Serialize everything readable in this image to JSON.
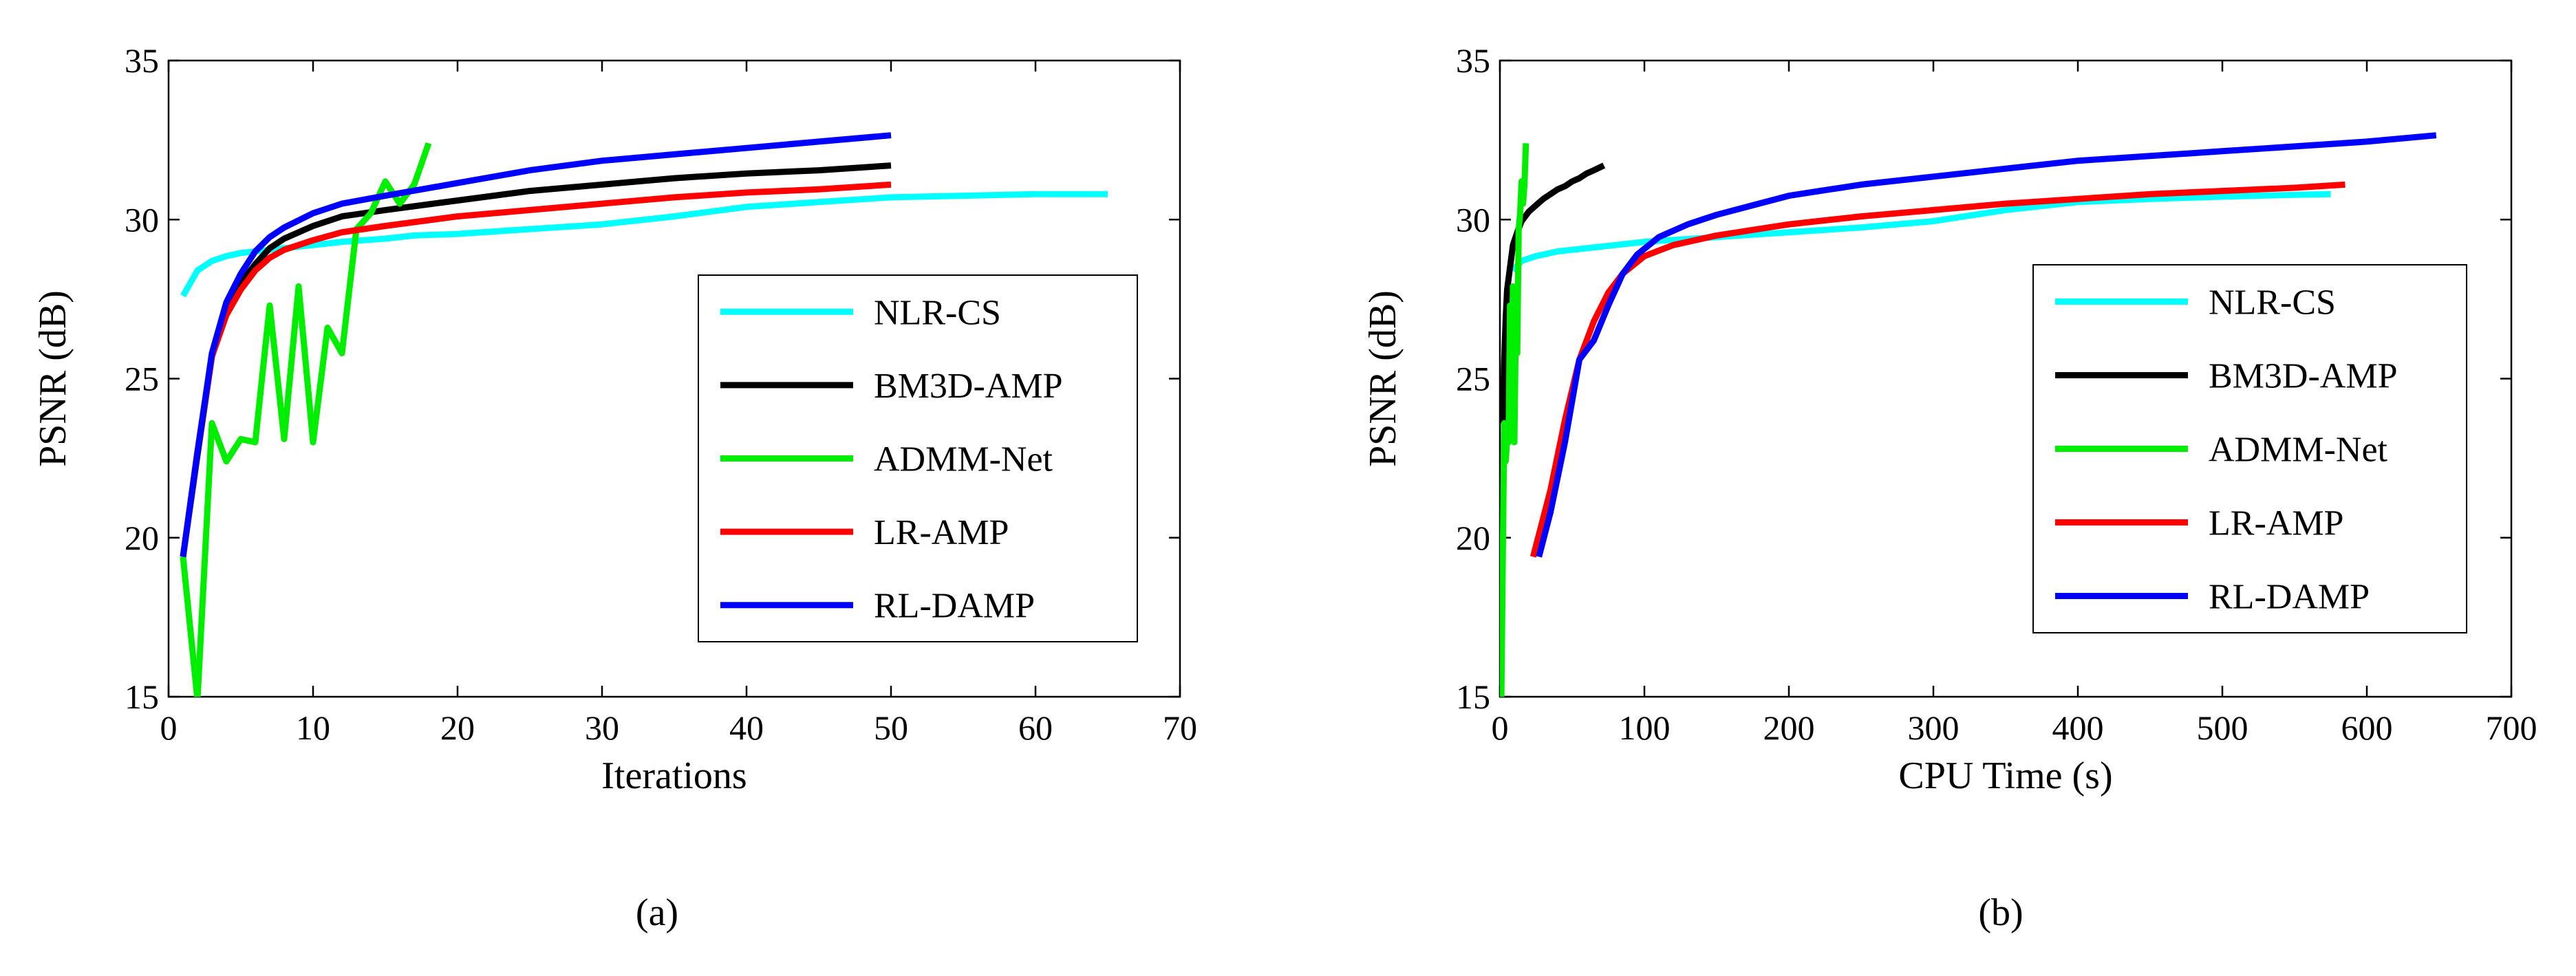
{
  "chart_data": [
    {
      "type": "line",
      "caption": "(a)",
      "xlabel": "Iterations",
      "ylabel": "PSNR (dB)",
      "xlim": [
        0,
        70
      ],
      "ylim": [
        15,
        35
      ],
      "xticks": [
        0,
        10,
        20,
        30,
        40,
        50,
        60,
        70
      ],
      "yticks": [
        15,
        20,
        25,
        30,
        35
      ],
      "grid": false,
      "legend_position": "right",
      "series": [
        {
          "name": "NLR-CS",
          "color": "#00ffff",
          "x": [
            1,
            2,
            3,
            4,
            5,
            6,
            8,
            10,
            12,
            15,
            17,
            20,
            25,
            30,
            35,
            40,
            45,
            50,
            55,
            60,
            65
          ],
          "y": [
            27.6,
            28.4,
            28.7,
            28.85,
            28.95,
            29.0,
            29.1,
            29.2,
            29.3,
            29.4,
            29.5,
            29.55,
            29.7,
            29.85,
            30.1,
            30.4,
            30.55,
            30.7,
            30.75,
            30.8,
            30.8
          ]
        },
        {
          "name": "BM3D-AMP",
          "color": "#000000",
          "x": [
            1,
            2,
            3,
            4,
            5,
            6,
            7,
            8,
            10,
            12,
            15,
            20,
            25,
            30,
            35,
            40,
            45,
            50
          ],
          "y": [
            19.4,
            22.6,
            25.7,
            27.2,
            28.0,
            28.6,
            29.1,
            29.4,
            29.8,
            30.1,
            30.3,
            30.6,
            30.9,
            31.1,
            31.3,
            31.45,
            31.55,
            31.7
          ]
        },
        {
          "name": "ADMM-Net",
          "color": "#00ee00",
          "x": [
            1,
            2,
            3,
            4,
            5,
            6,
            7,
            8,
            9,
            10,
            11,
            12,
            13,
            14,
            15,
            16,
            17,
            18
          ],
          "y": [
            19.4,
            14.9,
            23.6,
            22.4,
            23.1,
            23.0,
            27.3,
            23.1,
            27.9,
            23.0,
            26.6,
            25.8,
            29.7,
            30.2,
            31.2,
            30.5,
            31.1,
            32.4
          ]
        },
        {
          "name": "LR-AMP",
          "color": "#ff0000",
          "x": [
            1,
            2,
            3,
            4,
            5,
            6,
            7,
            8,
            10,
            12,
            15,
            20,
            25,
            30,
            35,
            40,
            45,
            50
          ],
          "y": [
            19.4,
            22.7,
            25.7,
            27.0,
            27.8,
            28.4,
            28.8,
            29.05,
            29.35,
            29.6,
            29.8,
            30.1,
            30.3,
            30.5,
            30.7,
            30.85,
            30.95,
            31.1
          ]
        },
        {
          "name": "RL-DAMP",
          "color": "#0000ff",
          "x": [
            1,
            2,
            3,
            4,
            5,
            6,
            7,
            8,
            10,
            12,
            15,
            20,
            25,
            30,
            35,
            40,
            45,
            50
          ],
          "y": [
            19.4,
            22.7,
            25.8,
            27.4,
            28.3,
            29.0,
            29.45,
            29.75,
            30.2,
            30.5,
            30.75,
            31.15,
            31.55,
            31.85,
            32.05,
            32.25,
            32.45,
            32.65
          ]
        }
      ]
    },
    {
      "type": "line",
      "caption": "(b)",
      "xlabel": "CPU Time (s)",
      "ylabel": "PSNR (dB)",
      "xlim": [
        0,
        700
      ],
      "ylim": [
        15,
        35
      ],
      "xticks": [
        0,
        100,
        200,
        300,
        400,
        500,
        600,
        700
      ],
      "yticks": [
        15,
        20,
        25,
        30,
        35
      ],
      "grid": false,
      "legend_position": "right",
      "series": [
        {
          "name": "NLR-CS",
          "color": "#00ffff",
          "x": [
            9,
            15,
            25,
            40,
            60,
            80,
            100,
            150,
            200,
            250,
            300,
            350,
            400,
            450,
            500,
            550,
            575
          ],
          "y": [
            28.4,
            28.7,
            28.85,
            29.0,
            29.1,
            29.2,
            29.3,
            29.45,
            29.6,
            29.75,
            29.95,
            30.3,
            30.55,
            30.65,
            30.72,
            30.78,
            30.8
          ]
        },
        {
          "name": "BM3D-AMP",
          "color": "#000000",
          "x": [
            2,
            3,
            4,
            5,
            7,
            9,
            12,
            15,
            20,
            25,
            30,
            35,
            40,
            45,
            50,
            55,
            60,
            65,
            72
          ],
          "y": [
            23.6,
            25.6,
            26.9,
            27.8,
            28.5,
            29.2,
            29.6,
            29.95,
            30.25,
            30.45,
            30.65,
            30.8,
            30.95,
            31.05,
            31.2,
            31.3,
            31.45,
            31.55,
            31.7
          ]
        },
        {
          "name": "ADMM-Net",
          "color": "#00ee00",
          "x": [
            1,
            2,
            3,
            4,
            5,
            6,
            7,
            8,
            9,
            10,
            11,
            12,
            13,
            14,
            15,
            16,
            17,
            18
          ],
          "y": [
            15.0,
            19.4,
            23.6,
            22.4,
            23.1,
            23.0,
            27.3,
            23.1,
            27.9,
            23.0,
            26.6,
            25.8,
            29.7,
            30.2,
            31.2,
            30.5,
            31.1,
            32.4
          ]
        },
        {
          "name": "LR-AMP",
          "color": "#ff0000",
          "x": [
            23,
            35,
            45,
            55,
            65,
            75,
            85,
            100,
            120,
            150,
            200,
            250,
            300,
            350,
            400,
            450,
            500,
            550,
            585
          ],
          "y": [
            19.4,
            21.5,
            23.7,
            25.6,
            26.8,
            27.7,
            28.3,
            28.85,
            29.2,
            29.5,
            29.85,
            30.1,
            30.3,
            30.5,
            30.65,
            30.8,
            30.9,
            31.0,
            31.1
          ]
        },
        {
          "name": "RL-DAMP",
          "color": "#0000ff",
          "x": [
            27,
            35,
            45,
            55,
            65,
            75,
            85,
            95,
            110,
            130,
            150,
            200,
            250,
            300,
            350,
            400,
            450,
            500,
            550,
            600,
            648
          ],
          "y": [
            19.4,
            20.8,
            23.0,
            25.6,
            26.2,
            27.3,
            28.3,
            28.9,
            29.45,
            29.85,
            30.15,
            30.75,
            31.1,
            31.35,
            31.6,
            31.85,
            32.0,
            32.15,
            32.3,
            32.45,
            32.65
          ]
        }
      ]
    }
  ]
}
